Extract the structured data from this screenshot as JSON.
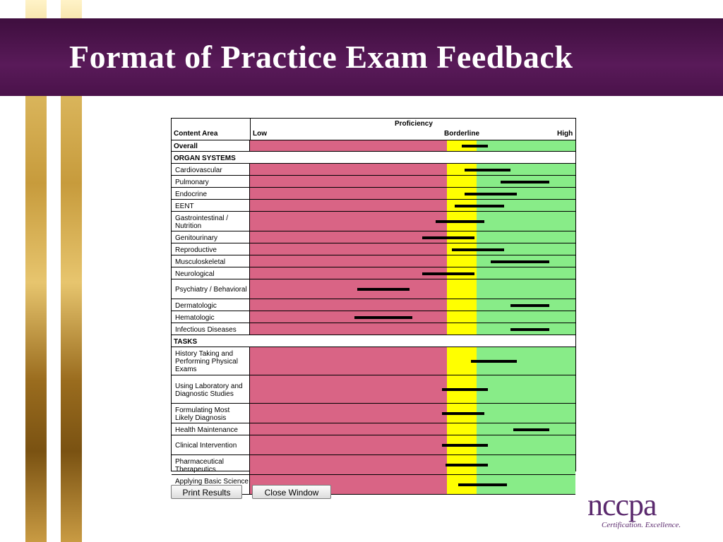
{
  "slide": {
    "title": "Format of Practice Exam Feedback"
  },
  "table": {
    "header": {
      "content_area": "Content Area",
      "proficiency": "Proficiency",
      "low": "Low",
      "borderline": "Borderline",
      "high": "High"
    },
    "rows": [
      {
        "kind": "overall",
        "label": "Overall",
        "bar": [
          0.65,
          0.73
        ]
      },
      {
        "kind": "section",
        "label": "ORGAN SYSTEMS"
      },
      {
        "kind": "item",
        "label": "Cardiovascular",
        "bar": [
          0.66,
          0.8
        ]
      },
      {
        "kind": "item",
        "label": "Pulmonary",
        "bar": [
          0.77,
          0.92
        ]
      },
      {
        "kind": "item",
        "label": "Endocrine",
        "bar": [
          0.66,
          0.82
        ]
      },
      {
        "kind": "item",
        "label": "EENT",
        "bar": [
          0.63,
          0.78
        ]
      },
      {
        "kind": "item",
        "label": "Gastrointestinal / Nutrition",
        "bar": [
          0.57,
          0.72
        ]
      },
      {
        "kind": "item",
        "label": "Genitourinary",
        "bar": [
          0.53,
          0.69
        ]
      },
      {
        "kind": "item",
        "label": "Reproductive",
        "bar": [
          0.62,
          0.78
        ]
      },
      {
        "kind": "item",
        "label": "Musculoskeletal",
        "bar": [
          0.74,
          0.92
        ]
      },
      {
        "kind": "item",
        "label": "Neurological",
        "bar": [
          0.53,
          0.69
        ]
      },
      {
        "kind": "item",
        "label": "Psychiatry / Behavioral",
        "bar": [
          0.33,
          0.49
        ]
      },
      {
        "kind": "item",
        "label": "Dermatologic",
        "bar": [
          0.8,
          0.92
        ]
      },
      {
        "kind": "item",
        "label": "Hematologic",
        "bar": [
          0.32,
          0.5
        ]
      },
      {
        "kind": "item",
        "label": "Infectious Diseases",
        "bar": [
          0.8,
          0.92
        ]
      },
      {
        "kind": "section",
        "label": "TASKS"
      },
      {
        "kind": "item",
        "label": "History Taking and Performing Physical Exams",
        "bar": [
          0.68,
          0.82
        ]
      },
      {
        "kind": "item",
        "label": "Using Laboratory and Diagnostic Studies",
        "bar": [
          0.59,
          0.73
        ]
      },
      {
        "kind": "item",
        "label": "Formulating Most Likely Diagnosis",
        "bar": [
          0.59,
          0.72
        ]
      },
      {
        "kind": "item",
        "label": "Health Maintenance",
        "bar": [
          0.81,
          0.92
        ]
      },
      {
        "kind": "item",
        "label": "Clinical Intervention",
        "bar": [
          0.59,
          0.73
        ]
      },
      {
        "kind": "item",
        "label": "Pharmaceutical Therapeutics",
        "bar": [
          0.6,
          0.73
        ]
      },
      {
        "kind": "item",
        "label": "Applying Basic Science Concepts",
        "bar": [
          0.64,
          0.79
        ]
      }
    ]
  },
  "buttons": {
    "print": "Print Results",
    "close": "Close Window"
  },
  "logo": {
    "word": "nccpa",
    "tagline": "Certification. Excellence."
  },
  "colors": {
    "low": "#d96485",
    "borderline": "#ffff00",
    "high": "#88ec88",
    "banner": "#4a124a"
  }
}
